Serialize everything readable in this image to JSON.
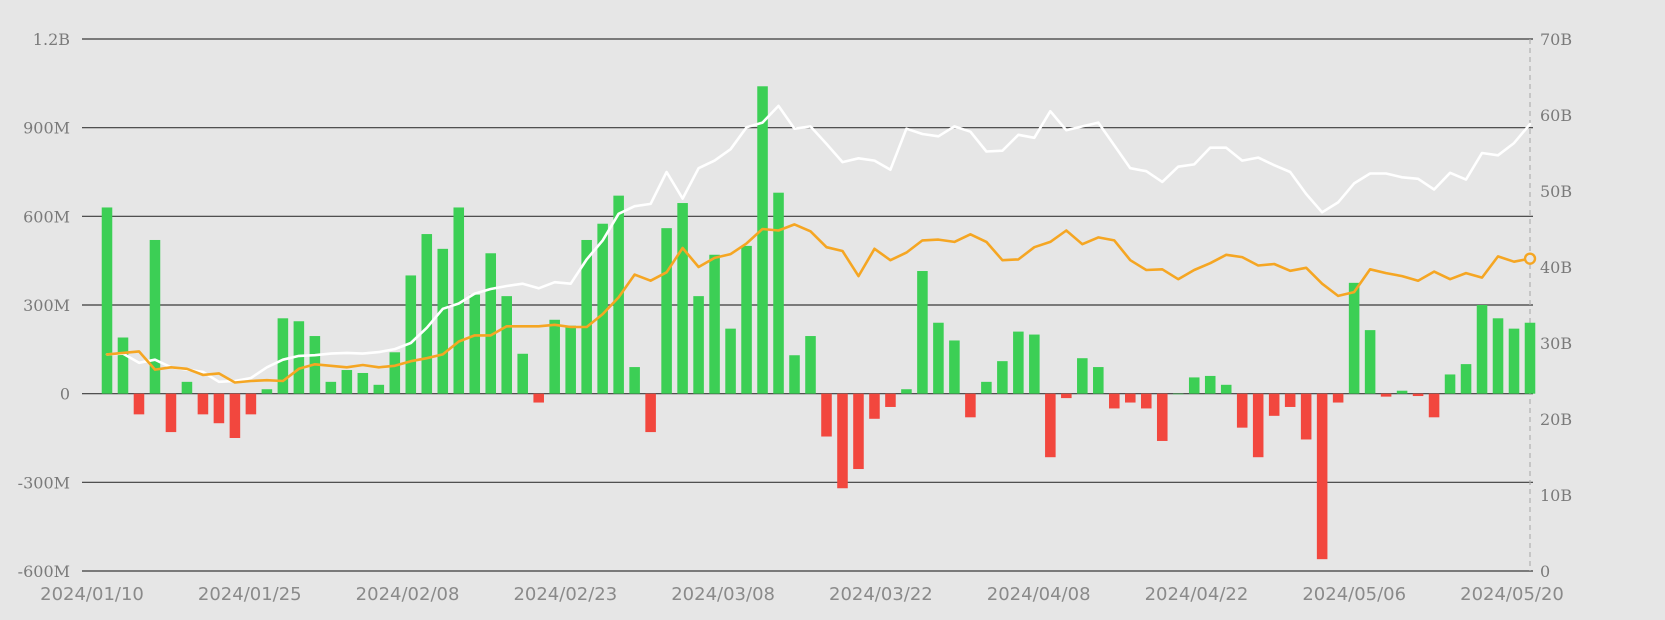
{
  "chart_data": {
    "type": "bar",
    "title": "",
    "xlabel": "",
    "ylabel": "",
    "grid": true,
    "colors": {
      "positive_bar": "#3ccf55",
      "negative_bar": "#f2473e",
      "white_line": "#ffffff",
      "orange_line": "#f5a623",
      "grid": "#3a3a3a",
      "background": "#e6e6e6"
    },
    "left_axis": {
      "min": -600000000,
      "max": 1200000000,
      "ticks": [
        1200000000,
        900000000,
        600000000,
        300000000,
        0,
        -300000000,
        -600000000
      ],
      "tick_labels": [
        "1.2B",
        "900M",
        "600M",
        "300M",
        "0",
        "-300M",
        "-600M"
      ]
    },
    "right_axis": {
      "min": 0,
      "max": 70000000000,
      "ticks": [
        70000000000,
        60000000000,
        50000000000,
        40000000000,
        30000000000,
        20000000000,
        10000000000,
        0
      ],
      "tick_labels": [
        "70B",
        "60B",
        "50B",
        "40B",
        "30B",
        "20B",
        "10B",
        "0"
      ]
    },
    "x_tick_labels": [
      "2024/01/10",
      "2024/01/25",
      "2024/02/08",
      "2024/02/23",
      "2024/03/08",
      "2024/03/22",
      "2024/04/08",
      "2024/04/22",
      "2024/05/06",
      "2024/05/20"
    ],
    "bars": {
      "axis": "left",
      "values": [
        630000000,
        190000000,
        -70000000,
        520000000,
        -130000000,
        40000000,
        -70000000,
        -100000000,
        -150000000,
        -70000000,
        15000000,
        255000000,
        245000000,
        195000000,
        40000000,
        80000000,
        70000000,
        30000000,
        140000000,
        400000000,
        540000000,
        490000000,
        630000000,
        335000000,
        475000000,
        330000000,
        135000000,
        -30000000,
        250000000,
        230000000,
        520000000,
        575000000,
        670000000,
        90000000,
        -130000000,
        560000000,
        645000000,
        330000000,
        470000000,
        220000000,
        500000000,
        1040000000,
        680000000,
        130000000,
        195000000,
        -145000000,
        -320000000,
        -255000000,
        -85000000,
        -45000000,
        15000000,
        415000000,
        240000000,
        180000000,
        -80000000,
        40000000,
        110000000,
        210000000,
        200000000,
        -215000000,
        -15000000,
        120000000,
        90000000,
        -50000000,
        -30000000,
        -50000000,
        -160000000,
        0,
        55000000,
        60000000,
        30000000,
        -115000000,
        -215000000,
        -75000000,
        -45000000,
        -155000000,
        -560000000,
        -30000000,
        375000000,
        215000000,
        -10000000,
        10000000,
        -8000000,
        -80000000,
        65000000,
        100000000,
        300000000,
        255000000,
        220000000,
        240000000
      ]
    },
    "series": [
      {
        "axis": "right",
        "color": "#ffffff",
        "values": [
          28500000000,
          28600000000,
          27400000000,
          27800000000,
          26800000000,
          26500000000,
          26200000000,
          24900000000,
          25000000000,
          25400000000,
          26800000000,
          27800000000,
          28300000000,
          28400000000,
          28600000000,
          28700000000,
          28600000000,
          28800000000,
          29200000000,
          30000000000,
          32000000000,
          34500000000,
          35200000000,
          36500000000,
          37100000000,
          37500000000,
          37800000000,
          37200000000,
          38000000000,
          37800000000,
          41000000000,
          43500000000,
          47000000000,
          48000000000,
          48300000000,
          52500000000,
          49000000000,
          53000000000,
          54000000000,
          55500000000,
          58400000000,
          59000000000,
          61200000000,
          58200000000,
          58500000000,
          56200000000,
          53800000000,
          54300000000,
          54000000000,
          52800000000,
          58200000000,
          57500000000,
          57200000000,
          58500000000,
          57800000000,
          55200000000,
          55300000000,
          57400000000,
          57000000000,
          60500000000,
          58000000000,
          58500000000,
          59000000000,
          56000000000,
          53000000000,
          52600000000,
          51200000000,
          53200000000,
          53500000000,
          55700000000,
          55700000000,
          54000000000,
          54400000000,
          53400000000,
          52500000000,
          49600000000,
          47200000000,
          48500000000,
          51000000000,
          52300000000,
          52300000000,
          51800000000,
          51600000000,
          50200000000,
          52400000000,
          51500000000,
          55000000000,
          54700000000,
          56300000000,
          58800000000
        ]
      },
      {
        "axis": "right",
        "color": "#f5a623",
        "values": [
          28500000000,
          28700000000,
          28900000000,
          26500000000,
          26800000000,
          26600000000,
          25800000000,
          26000000000,
          24800000000,
          25000000000,
          25100000000,
          25000000000,
          26600000000,
          27200000000,
          27000000000,
          26800000000,
          27100000000,
          26800000000,
          27000000000,
          27600000000,
          28000000000,
          28500000000,
          30200000000,
          31000000000,
          31000000000,
          32200000000,
          32200000000,
          32200000000,
          32400000000,
          32100000000,
          32100000000,
          33800000000,
          36000000000,
          39000000000,
          38200000000,
          39300000000,
          42500000000,
          40000000000,
          41200000000,
          41700000000,
          43100000000,
          45000000000,
          44800000000,
          45600000000,
          44700000000,
          42600000000,
          42100000000,
          38800000000,
          42400000000,
          40900000000,
          41900000000,
          43500000000,
          43600000000,
          43300000000,
          44300000000,
          43300000000,
          40900000000,
          41000000000,
          42600000000,
          43300000000,
          44800000000,
          43000000000,
          43900000000,
          43500000000,
          40900000000,
          39600000000,
          39700000000,
          38400000000,
          39600000000,
          40500000000,
          41600000000,
          41300000000,
          40200000000,
          40400000000,
          39500000000,
          39900000000,
          37800000000,
          36200000000,
          36700000000,
          39700000000,
          39200000000,
          38800000000,
          38200000000,
          39400000000,
          38400000000,
          39200000000,
          38600000000,
          41400000000,
          40700000000,
          41100000000
        ]
      }
    ]
  }
}
